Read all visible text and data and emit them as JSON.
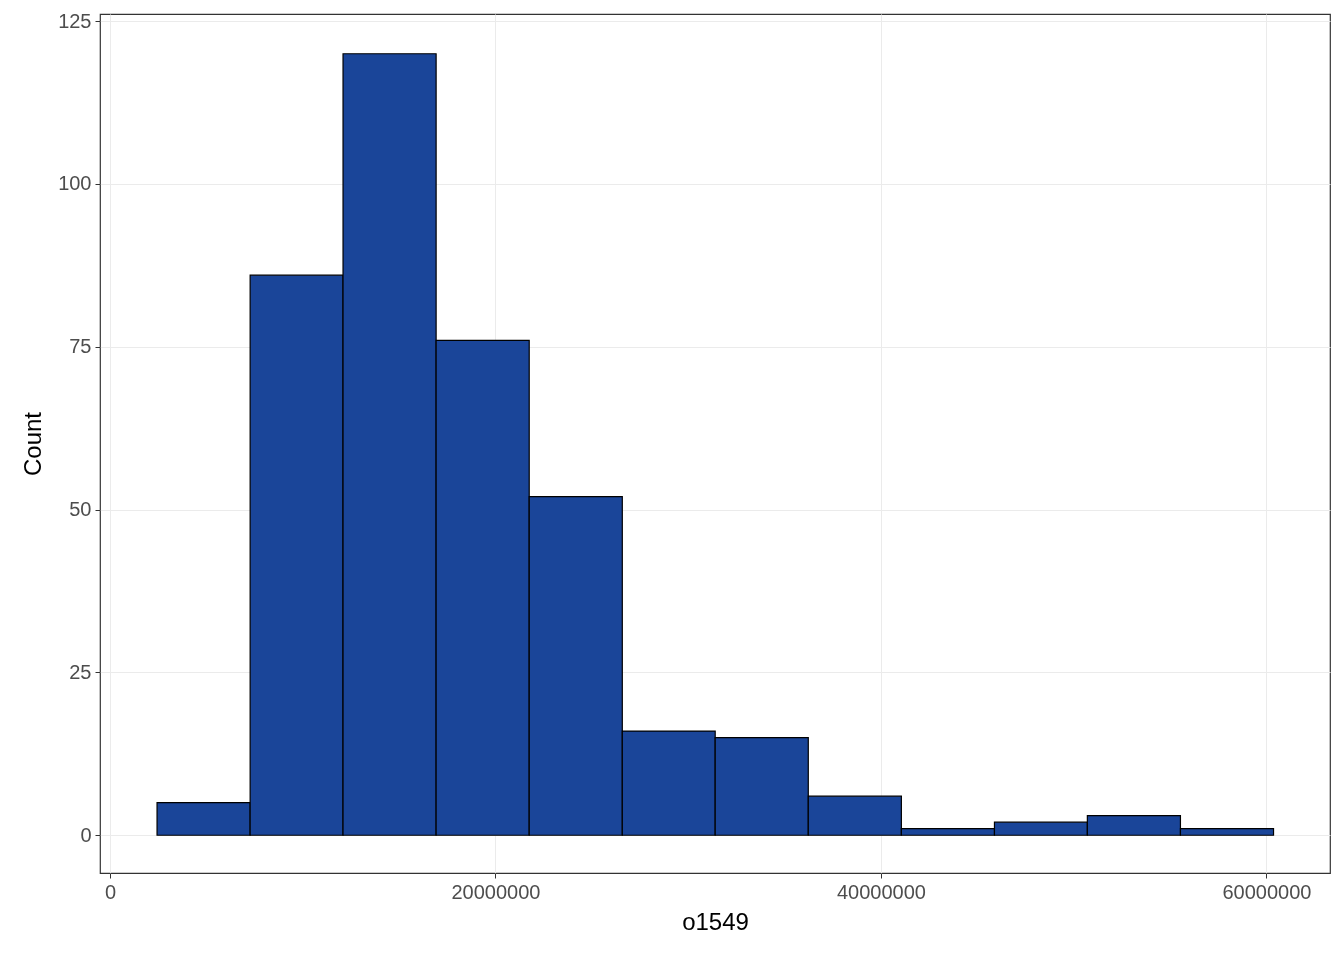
{
  "chart_data": {
    "type": "histogram",
    "xlabel": "o1549",
    "ylabel": "Count",
    "bins": [
      2440000,
      7270000,
      12090000,
      16920000,
      21750000,
      26580000,
      31400000,
      36230000,
      41060000,
      45890000,
      50710000,
      55540000,
      60370000
    ],
    "values": [
      5,
      86,
      120,
      76,
      52,
      16,
      15,
      6,
      1,
      2,
      3,
      1
    ],
    "color": "#1a4599",
    "xlim": [
      -520000,
      63300000
    ],
    "xticks": [
      0,
      20000000,
      40000000,
      60000000
    ],
    "ylim": [
      -5.8,
      126.1
    ],
    "yticks": [
      0,
      25,
      50,
      75,
      100,
      125
    ],
    "grid": true
  }
}
